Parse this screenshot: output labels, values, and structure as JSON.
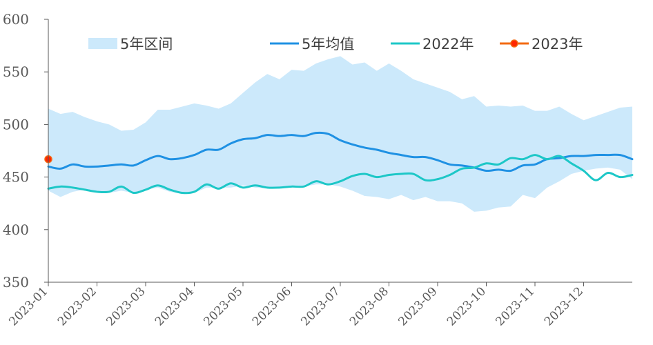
{
  "chart_data": {
    "type": "line",
    "title": "",
    "xlabel": "",
    "ylabel": "",
    "ylim": [
      350,
      600
    ],
    "yticks": [
      350,
      400,
      450,
      500,
      550,
      600
    ],
    "x_range": [
      0,
      12
    ],
    "x_ticks": [
      "2023-01",
      "2023-02",
      "2023-03",
      "2023-04",
      "2023-05",
      "2023-06",
      "2023-07",
      "2023-08",
      "2023-09",
      "2023-10",
      "2023-11",
      "2023-12"
    ],
    "grid": false,
    "legend_position": "top",
    "legend": [
      {
        "key": "band",
        "label": "5年区间",
        "color": "#cce9fb",
        "style": "area"
      },
      {
        "key": "avg",
        "label": "5年均值",
        "color": "#1f91e3",
        "style": "line"
      },
      {
        "key": "y2022",
        "label": "2022年",
        "color": "#1dc7c7",
        "style": "line"
      },
      {
        "key": "y2023",
        "label": "2023年",
        "color": "#f36a12",
        "marker_color": "#ff2600",
        "style": "line-marker"
      }
    ],
    "band": {
      "name": "5年区间",
      "x": [
        0,
        0.25,
        0.5,
        0.75,
        1.0,
        1.25,
        1.5,
        1.75,
        2.0,
        2.25,
        2.5,
        2.75,
        3.0,
        3.25,
        3.5,
        3.75,
        4.0,
        4.25,
        4.5,
        4.75,
        5.0,
        5.25,
        5.5,
        5.75,
        6.0,
        6.25,
        6.5,
        6.75,
        7.0,
        7.25,
        7.5,
        7.75,
        8.0,
        8.25,
        8.5,
        8.75,
        9.0,
        9.25,
        9.5,
        9.75,
        10.0,
        10.25,
        10.5,
        10.75,
        11.0,
        11.25,
        11.5,
        11.75,
        12.0
      ],
      "upper": [
        515,
        510,
        512,
        507,
        503,
        500,
        494,
        495,
        502,
        514,
        514,
        517,
        520,
        518,
        515,
        520,
        530,
        540,
        548,
        543,
        552,
        551,
        558,
        562,
        565,
        557,
        559,
        551,
        558,
        551,
        543,
        539,
        535,
        531,
        524,
        527,
        517,
        518,
        517,
        518,
        513,
        513,
        517,
        510,
        504,
        508,
        512,
        516,
        517
      ],
      "lower": [
        437,
        431,
        436,
        438,
        436,
        435,
        437,
        435,
        438,
        440,
        436,
        434,
        435,
        440,
        440,
        440,
        442,
        440,
        439,
        440,
        441,
        441,
        443,
        443,
        441,
        437,
        432,
        431,
        429,
        433,
        428,
        431,
        427,
        427,
        425,
        417,
        418,
        421,
        422,
        433,
        430,
        440,
        446,
        453,
        456,
        458,
        459,
        457,
        448
      ]
    },
    "series": [
      {
        "key": "avg",
        "name": "5年均值",
        "x": [
          0,
          0.25,
          0.5,
          0.75,
          1.0,
          1.25,
          1.5,
          1.75,
          2.0,
          2.25,
          2.5,
          2.75,
          3.0,
          3.25,
          3.5,
          3.75,
          4.0,
          4.25,
          4.5,
          4.75,
          5.0,
          5.25,
          5.5,
          5.75,
          6.0,
          6.25,
          6.5,
          6.75,
          7.0,
          7.25,
          7.5,
          7.75,
          8.0,
          8.25,
          8.5,
          8.75,
          9.0,
          9.25,
          9.5,
          9.75,
          10.0,
          10.25,
          10.5,
          10.75,
          11.0,
          11.25,
          11.5,
          11.75,
          12.0
        ],
        "values": [
          460,
          458,
          462,
          460,
          460,
          461,
          462,
          461,
          466,
          470,
          467,
          468,
          471,
          476,
          476,
          482,
          486,
          487,
          490,
          489,
          490,
          489,
          492,
          491,
          485,
          481,
          478,
          476,
          473,
          471,
          469,
          469,
          466,
          462,
          461,
          459,
          456,
          457,
          456,
          461,
          462,
          467,
          468,
          470,
          470,
          471,
          471,
          471,
          467
        ]
      },
      {
        "key": "y2022",
        "name": "2022年",
        "x": [
          0,
          0.25,
          0.5,
          0.75,
          1.0,
          1.25,
          1.5,
          1.75,
          2.0,
          2.25,
          2.5,
          2.75,
          3.0,
          3.25,
          3.5,
          3.75,
          4.0,
          4.25,
          4.5,
          4.75,
          5.0,
          5.25,
          5.5,
          5.75,
          6.0,
          6.25,
          6.5,
          6.75,
          7.0,
          7.25,
          7.5,
          7.75,
          8.0,
          8.25,
          8.5,
          8.75,
          9.0,
          9.25,
          9.5,
          9.75,
          10.0,
          10.25,
          10.5,
          10.75,
          11.0,
          11.25,
          11.5,
          11.75,
          12.0
        ],
        "values": [
          439,
          441,
          440,
          438,
          436,
          436,
          441,
          435,
          438,
          442,
          438,
          435,
          436,
          443,
          439,
          444,
          440,
          442,
          440,
          440,
          441,
          441,
          446,
          443,
          446,
          451,
          453,
          450,
          452,
          453,
          453,
          447,
          448,
          452,
          458,
          459,
          463,
          462,
          468,
          467,
          471,
          467,
          470,
          463,
          456,
          447,
          454,
          450,
          452
        ]
      },
      {
        "key": "y2023",
        "name": "2023年",
        "x": [
          0
        ],
        "values": [
          467
        ]
      }
    ]
  }
}
